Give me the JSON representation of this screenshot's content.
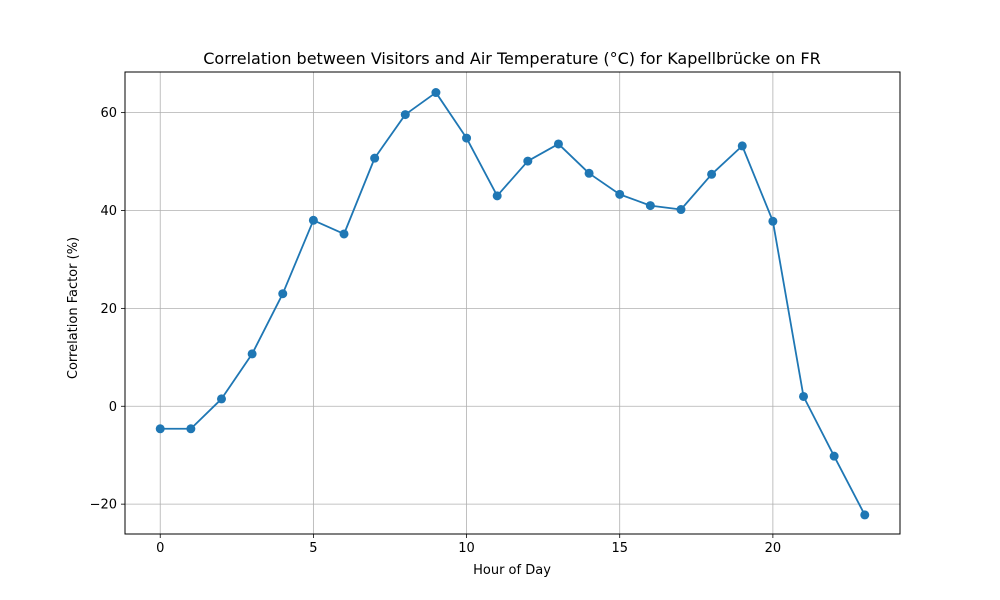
{
  "chart_data": {
    "type": "line",
    "title": "Correlation between Visitors and Air Temperature (°C) for Kapellbrücke on FR",
    "xlabel": "Hour of Day",
    "ylabel": "Correlation Factor (%)",
    "x": [
      0,
      1,
      2,
      3,
      4,
      5,
      6,
      7,
      8,
      9,
      10,
      11,
      12,
      13,
      14,
      15,
      16,
      17,
      18,
      19,
      20,
      21,
      22,
      23
    ],
    "series": [
      {
        "values": [
          -4.6,
          -4.6,
          1.5,
          10.7,
          23.0,
          38.0,
          35.2,
          50.7,
          59.6,
          64.1,
          54.8,
          43.0,
          50.1,
          53.6,
          47.6,
          43.3,
          41.0,
          40.2,
          47.4,
          53.2,
          37.8,
          2.0,
          -10.2,
          -22.2
        ],
        "color": "#1f77b4",
        "marker": "circle"
      }
    ],
    "xlim": [
      -1.15,
      24.15
    ],
    "ylim": [
      -26.1,
      68.3
    ],
    "x_ticks": [
      0,
      5,
      10,
      15,
      20
    ],
    "y_ticks": [
      -20,
      0,
      20,
      40,
      60
    ],
    "x_tick_labels": [
      "0",
      "5",
      "10",
      "15",
      "20"
    ],
    "y_tick_labels": [
      "−20",
      "0",
      "20",
      "40",
      "60"
    ],
    "grid": true,
    "legend": false
  }
}
